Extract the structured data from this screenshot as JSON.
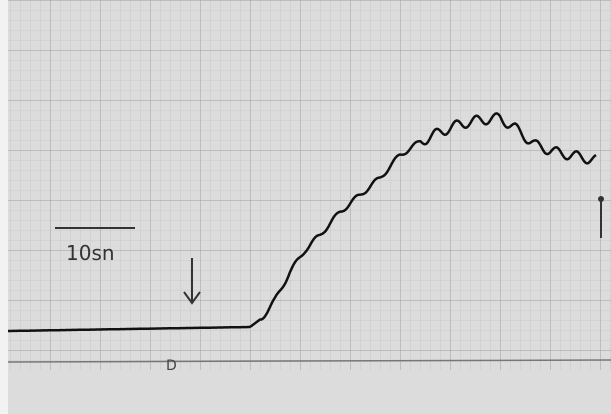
{
  "scale_label": "10sn",
  "marker_label": "D"
}
